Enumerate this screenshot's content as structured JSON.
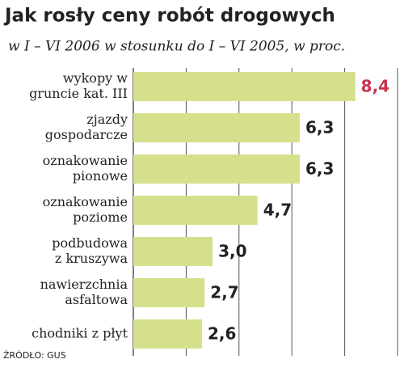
{
  "chart_data": {
    "type": "hbar",
    "title": "Jak rosły ceny robót drogowych",
    "subtitle": "w I – VI 2006 w stosunku do I – VI 2005, w proc.",
    "source": "ŹRÓDŁO: GUS",
    "categories": [
      [
        "wykopy w",
        "gruncie kat. III"
      ],
      [
        "zjazdy",
        "gospodarcze"
      ],
      [
        "oznakowanie",
        "pionowe"
      ],
      [
        "oznakowanie",
        "poziome"
      ],
      [
        "podbudowa",
        "z kruszywa"
      ],
      [
        "nawierzchnia",
        "asfaltowa"
      ],
      [
        "chodniki z płyt"
      ]
    ],
    "values": [
      8.4,
      6.3,
      6.3,
      4.7,
      3.0,
      2.7,
      2.6
    ],
    "value_labels": [
      "8,4",
      "6,3",
      "6,3",
      "4,7",
      "3,0",
      "2,7",
      "2,6"
    ],
    "value_label_colors": [
      "#c8334e",
      "#222222",
      "#222222",
      "#222222",
      "#222222",
      "#222222",
      "#222222"
    ],
    "color": "#d6e08c",
    "xlim": [
      0,
      10
    ],
    "xticks": [
      0,
      2,
      4,
      6,
      8,
      10
    ],
    "grid": true
  }
}
